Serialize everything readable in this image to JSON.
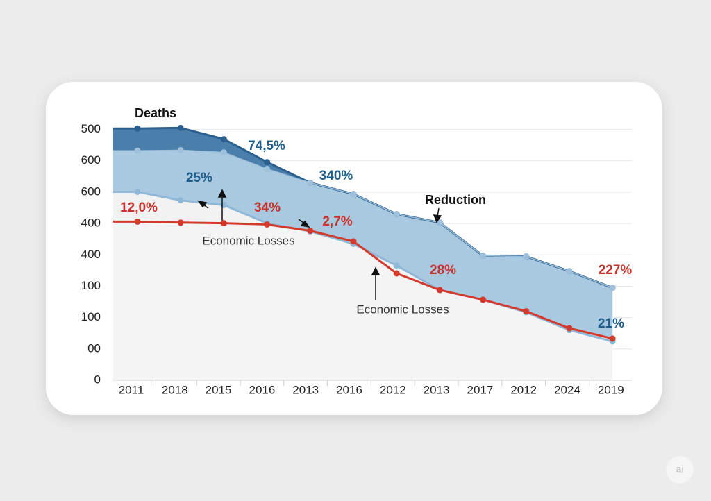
{
  "chart_data": {
    "type": "area",
    "categories": [
      "2011",
      "2018",
      "2015",
      "2016",
      "2013",
      "2016",
      "2012",
      "2013",
      "2017",
      "2012",
      "2024",
      "2019"
    ],
    "series": [
      {
        "name": "Deaths",
        "color": "#2b5f8e",
        "fill": "#4a7fab",
        "values": [
          803,
          805,
          769,
          696,
          630,
          594,
          530,
          503,
          397,
          395,
          348,
          295
        ]
      },
      {
        "color": "#9fc0da",
        "fill": "#a9c9e1",
        "values": [
          732,
          734,
          727,
          674,
          630,
          594,
          530,
          503,
          397,
          395,
          348,
          295
        ]
      },
      {
        "color": "#8fb8d8",
        "fill": "#f2f2f2",
        "values": [
          601,
          574,
          559,
          501,
          475,
          435,
          366,
          288,
          257,
          217,
          160,
          124
        ]
      },
      {
        "name": "Economic Losses",
        "color": "#d33a2c",
        "values": [
          506,
          503,
          501,
          497,
          477,
          443,
          341,
          288,
          257,
          220,
          166,
          133
        ]
      }
    ],
    "ylim": [
      0,
      850
    ],
    "yticks": [
      0,
      {
        "value": 100,
        "label": "00"
      },
      {
        "value": 200,
        "label": "100"
      },
      {
        "value": 300,
        "label": "100"
      },
      {
        "value": 400,
        "label": "400"
      },
      {
        "value": 500,
        "label": "400"
      },
      {
        "value": 600,
        "label": "600"
      },
      {
        "value": 700,
        "label": "600"
      },
      {
        "value": 800,
        "label": "500"
      }
    ],
    "grid": true,
    "annotations": [
      {
        "text": "Deaths",
        "color": "#111111"
      },
      {
        "text": "74,5%",
        "color": "#1f5f8b"
      },
      {
        "text": "25%",
        "color": "#1f5f8b"
      },
      {
        "text": "340%",
        "color": "#1f5f8b"
      },
      {
        "text": "Reduction",
        "color": "#111111"
      },
      {
        "text": "12,0%",
        "color": "#c8302a"
      },
      {
        "text": "34%",
        "color": "#c8302a"
      },
      {
        "text": "2,7%",
        "color": "#c8302a"
      },
      {
        "text": "Economic Losses",
        "color": "#333333"
      },
      {
        "text": "Economic Losses",
        "color": "#333333"
      },
      {
        "text": "28%",
        "color": "#c8302a"
      },
      {
        "text": "227%",
        "color": "#c8302a"
      },
      {
        "text": "21%",
        "color": "#1f5f8b"
      }
    ],
    "watermark": "ai"
  }
}
